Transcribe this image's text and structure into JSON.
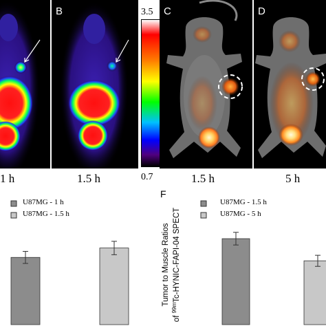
{
  "panels": [
    {
      "label": "",
      "time": "1 h"
    },
    {
      "label": "B",
      "time": "1.5 h"
    },
    {
      "label": "C",
      "time": "1.5 h"
    },
    {
      "label": "D",
      "time": "5 h"
    }
  ],
  "colorbar": {
    "max": "3.5",
    "min": "0.7"
  },
  "chart_left": {
    "type": "bar",
    "series": [
      {
        "name": "U87MG - 1 h",
        "values": [
          4.5
        ],
        "error": [
          0.45
        ]
      },
      {
        "name": "U87MG - 1.5 h",
        "values": [
          5.2
        ],
        "error": [
          0.5
        ]
      }
    ],
    "colors": [
      "#8c8c8c",
      "#c8c8c8"
    ]
  },
  "chart_right": {
    "type": "bar",
    "figure_label": "F",
    "ylabel_line1": "Tumor to Muscle Ratios",
    "ylabel_line2_prefix": "of ",
    "ylabel_sup": "99m",
    "ylabel_line2_rest": "Tc-HYNIC-FAPI-04 SPECT",
    "series": [
      {
        "name": "U87MG - 1.5 h",
        "values": [
          5.0
        ],
        "error": [
          0.4
        ]
      },
      {
        "name": "U87MG - 5 h",
        "values": [
          3.6
        ],
        "error": [
          0.35
        ]
      }
    ],
    "colors": [
      "#8c8c8c",
      "#c8c8c8"
    ]
  }
}
